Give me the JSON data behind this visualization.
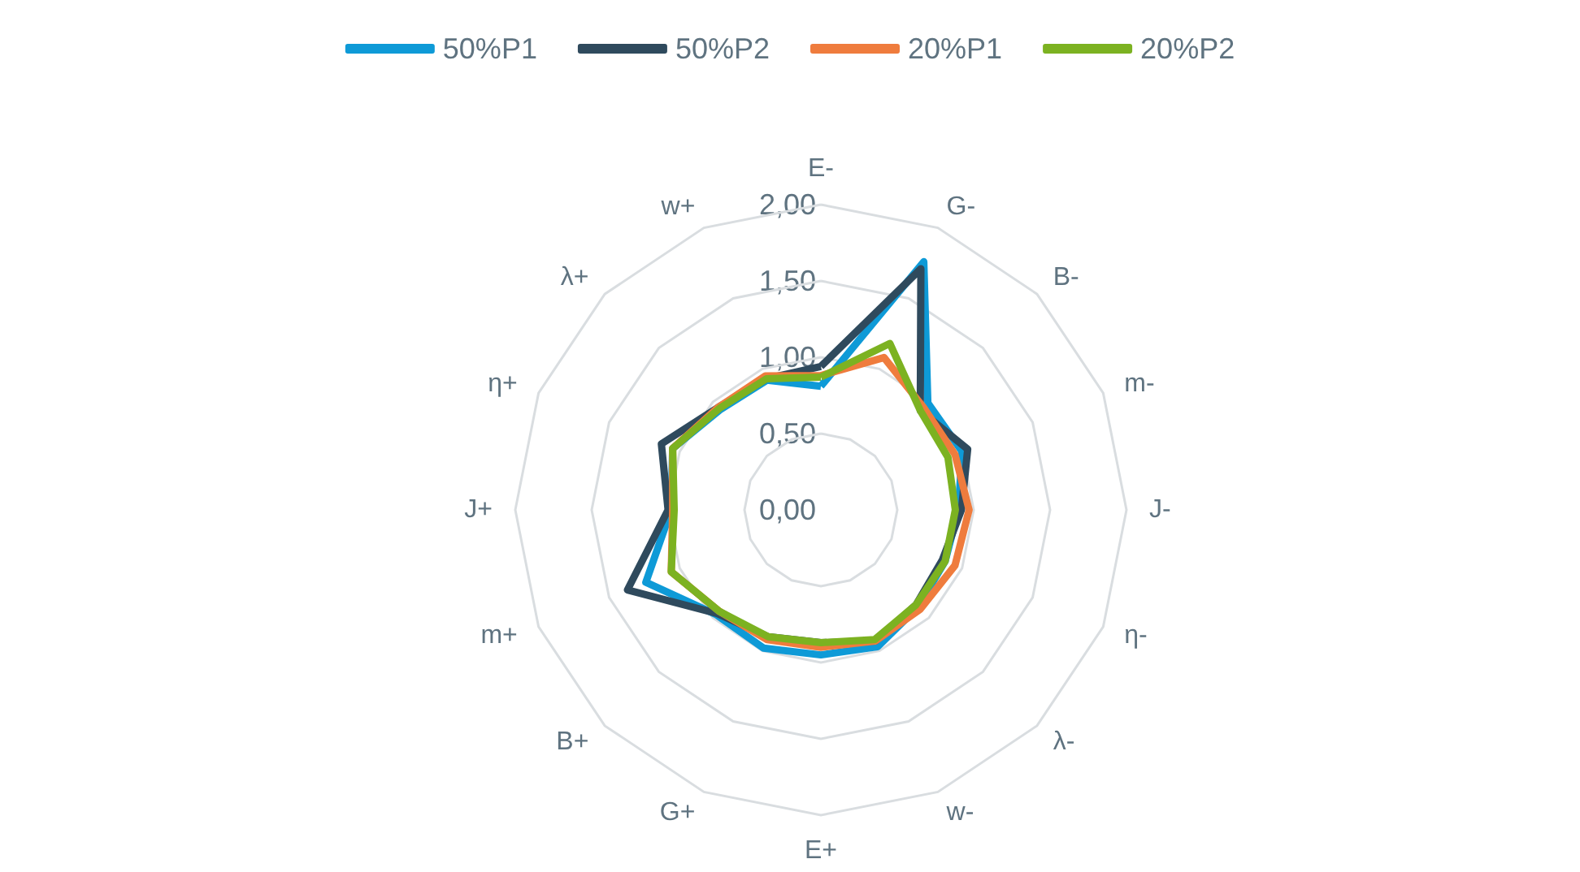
{
  "chart_data": {
    "type": "radar",
    "categories": [
      "E-",
      "G-",
      "B-",
      "m-",
      "J-",
      "η-",
      "λ-",
      "w-",
      "E+",
      "G+",
      "B+",
      "m+",
      "J+",
      "η+",
      "λ+",
      "w+"
    ],
    "ylim": [
      0,
      2
    ],
    "yticks": [
      {
        "value": 0,
        "label": "0,00"
      },
      {
        "value": 0.5,
        "label": "0,50"
      },
      {
        "value": 1,
        "label": "1,00"
      },
      {
        "value": 1.5,
        "label": "1,50"
      },
      {
        "value": 2,
        "label": "2,00"
      }
    ],
    "legend": "top",
    "grid": true,
    "series": [
      {
        "name": "50%P1",
        "color": "#0e9ad7",
        "values": [
          0.81,
          1.76,
          0.99,
          1.0,
          0.9,
          0.88,
          0.9,
          0.97,
          0.95,
          0.98,
          0.97,
          1.24,
          0.98,
          1.05,
          0.93,
          0.92
        ]
      },
      {
        "name": "50%P2",
        "color": "#2f4a5d",
        "values": [
          0.94,
          1.71,
          0.92,
          1.04,
          0.92,
          0.86,
          0.88,
          0.93,
          0.87,
          0.9,
          0.96,
          1.37,
          1.0,
          1.13,
          0.95,
          0.93
        ]
      },
      {
        "name": "20%P1",
        "color": "#ef7c3d",
        "values": [
          0.88,
          1.08,
          0.95,
          0.95,
          0.97,
          0.95,
          0.92,
          0.93,
          0.9,
          0.92,
          0.94,
          1.06,
          0.97,
          1.05,
          0.95,
          0.95
        ]
      },
      {
        "name": "20%P2",
        "color": "#7cb221",
        "values": [
          0.87,
          1.18,
          0.92,
          0.9,
          0.88,
          0.88,
          0.88,
          0.92,
          0.87,
          0.9,
          0.94,
          1.06,
          0.96,
          1.05,
          0.94,
          0.93
        ]
      }
    ]
  }
}
